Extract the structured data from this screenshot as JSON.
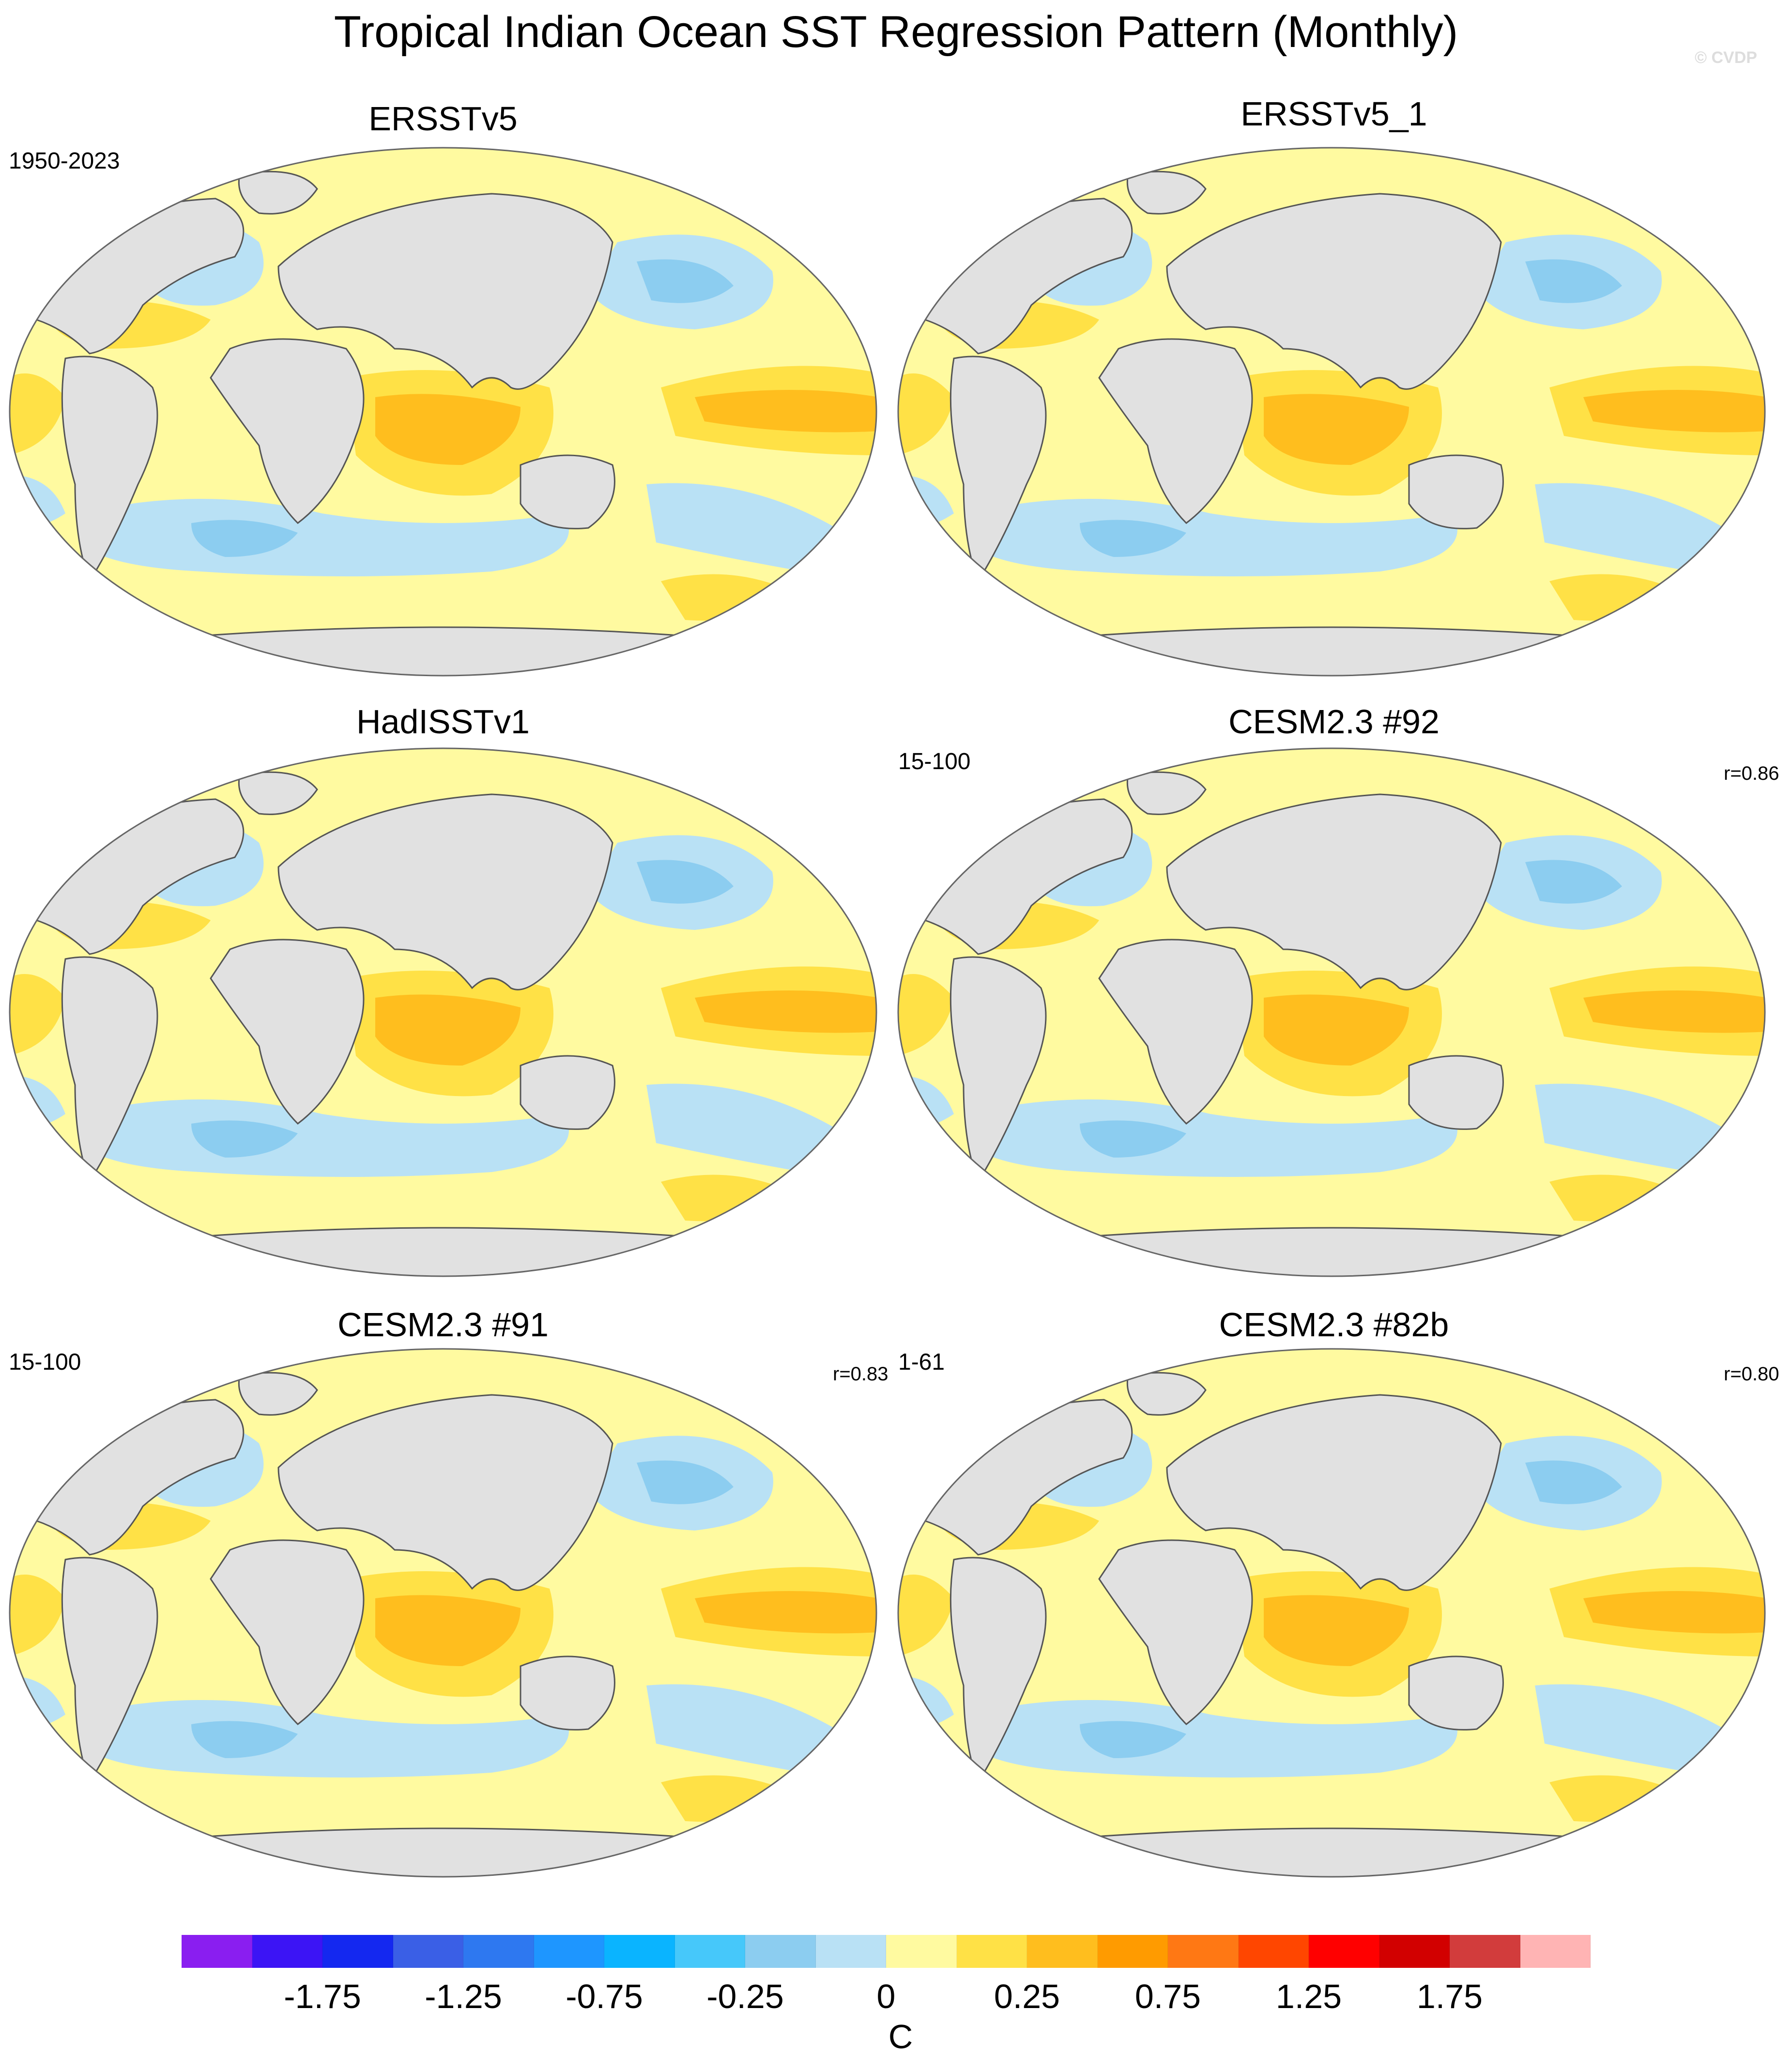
{
  "title": "Tropical Indian Ocean SST Regression Pattern (Monthly)",
  "watermark": "© CVDP",
  "panels": [
    {
      "title": "ERSSTv5",
      "left_label": "1950-2023",
      "right_label": ""
    },
    {
      "title": "ERSSTv5_1",
      "left_label": "",
      "right_label": ""
    },
    {
      "title": "HadISSTv1",
      "left_label": "",
      "right_label": ""
    },
    {
      "title": "CESM2.3 #92",
      "left_label": "15-100",
      "right_label": "r=0.86"
    },
    {
      "title": "CESM2.3 #91",
      "left_label": "15-100",
      "right_label": "r=0.83"
    },
    {
      "title": "CESM2.3 #82b",
      "left_label": "1-61",
      "right_label": "r=0.80"
    }
  ],
  "colorbar": {
    "colors": [
      "#8a1ef0",
      "#3c14f5",
      "#1428f0",
      "#3a5fe6",
      "#2e78f0",
      "#1e96ff",
      "#0ab4ff",
      "#46c8fa",
      "#8ccdf0",
      "#b9e1f5",
      "#fffaa0",
      "#ffe146",
      "#ffbe1e",
      "#ff9b00",
      "#ff7814",
      "#ff4600",
      "#ff0000",
      "#d20000",
      "#d23c3c",
      "#ffb4b4"
    ],
    "tick_labels": [
      "-1.75",
      "-1.25",
      "-0.75",
      "-0.25",
      "0",
      "0.25",
      "0.75",
      "1.25",
      "1.75"
    ],
    "unit": "C"
  },
  "map_colors": {
    "land": "#e1e1e1",
    "coast": "#555555",
    "neutral_warm": "#fffaa0",
    "warm": "#ffe146",
    "warmer": "#ffbe1e",
    "warmest": "#ff9b00",
    "neutral_cool": "#b9e1f5",
    "cool": "#8ccdf0",
    "cooler": "#46c8fa"
  }
}
